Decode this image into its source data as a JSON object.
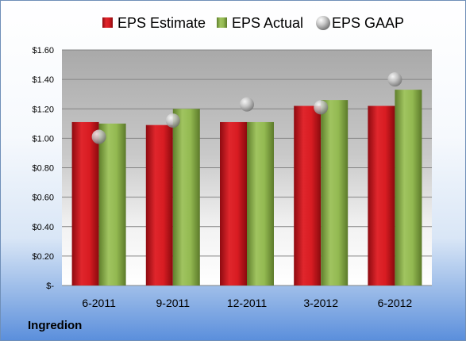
{
  "company": "Ingredion",
  "colors": {
    "estimate": "#c8141c",
    "actual": "#8cb34a",
    "gaap": "#b8b8b8"
  },
  "chart_data": {
    "type": "bar",
    "categories": [
      "6-2011",
      "9-2011",
      "12-2011",
      "3-2012",
      "6-2012"
    ],
    "series": [
      {
        "name": "EPS Estimate",
        "values": [
          1.11,
          1.09,
          1.11,
          1.22,
          1.22
        ]
      },
      {
        "name": "EPS Actual",
        "values": [
          1.1,
          1.2,
          1.11,
          1.26,
          1.33
        ]
      },
      {
        "name": "EPS GAAP",
        "marker": "circle",
        "values": [
          1.01,
          1.12,
          1.23,
          1.21,
          1.4
        ]
      }
    ],
    "ylim": [
      0,
      1.6
    ],
    "yticks": [
      0,
      0.2,
      0.4,
      0.6,
      0.8,
      1.0,
      1.2,
      1.4,
      1.6
    ],
    "ytick_labels": [
      "$-",
      "$0.20",
      "$0.40",
      "$0.60",
      "$0.80",
      "$1.00",
      "$1.20",
      "$1.40",
      "$1.60"
    ],
    "legend_position": "top",
    "grid": true
  }
}
